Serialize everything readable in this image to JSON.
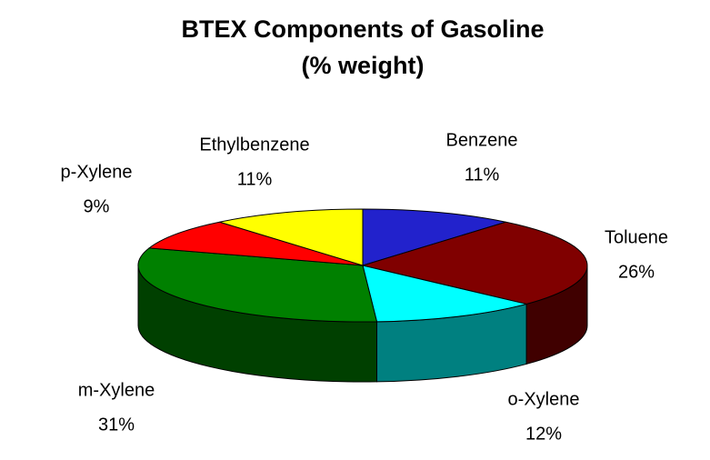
{
  "chart_data": {
    "type": "pie3d",
    "title": "BTEX  Components of Gasoline",
    "subtitle": "(% weight)",
    "categories": [
      "Benzene",
      "Toluene",
      "o-Xylene",
      "m-Xylene",
      "p-Xylene",
      "Ethylbenzene"
    ],
    "values": [
      11,
      26,
      12,
      31,
      9,
      11
    ],
    "value_labels": [
      "11%",
      "26%",
      "12%",
      "31%",
      "9%",
      "11%"
    ],
    "colors": [
      "#2222cc",
      "#800000",
      "#00ffff",
      "#008000",
      "#ff0000",
      "#ffff00"
    ]
  }
}
